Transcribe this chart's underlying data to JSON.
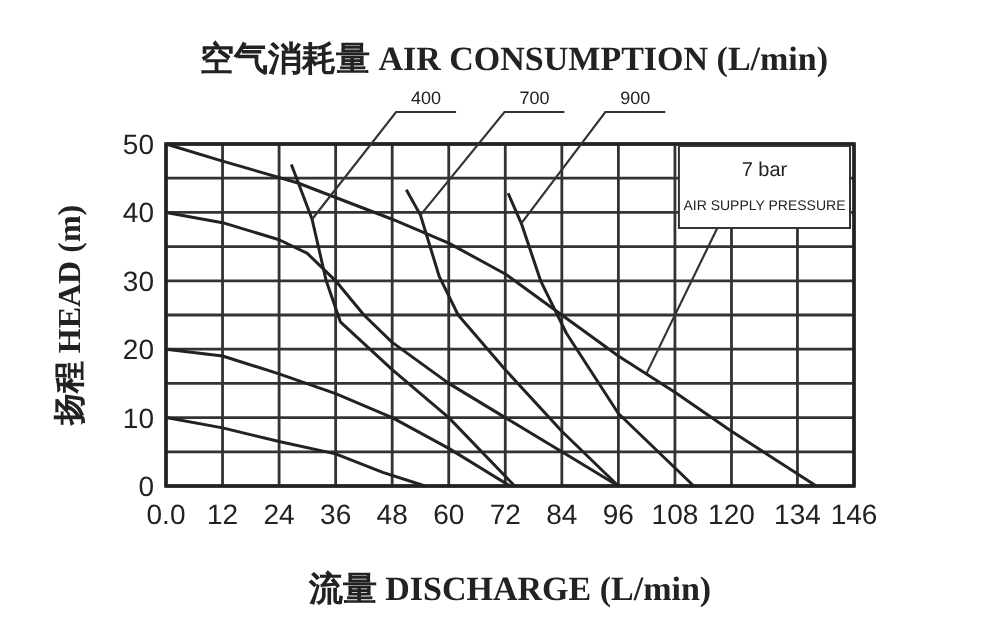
{
  "chart_data": {
    "type": "line",
    "title": "空气消耗量 AIR CONSUMPTION (L/min)",
    "xlabel": "流量 DISCHARGE (L/min)",
    "ylabel": "扬程 HEAD (m)",
    "xlim": [
      0,
      146
    ],
    "xticks": [
      {
        "value": 0,
        "label": "0.0"
      },
      12,
      24,
      36,
      48,
      60,
      72,
      84,
      96,
      108,
      120,
      134,
      146
    ],
    "ylim": [
      0,
      50
    ],
    "yticks": [
      0,
      {
        "value": 5,
        "label": null
      },
      10,
      {
        "value": 15,
        "label": null
      },
      20,
      {
        "value": 25,
        "label": null
      },
      30,
      {
        "value": 35,
        "label": null
      },
      40,
      {
        "value": 45,
        "label": null
      },
      50
    ],
    "grid": true,
    "marker": "none",
    "line_style": "solid",
    "series": [
      {
        "color": "#222222",
        "x": [
          0,
          12,
          28,
          48,
          60,
          72,
          84,
          96,
          108,
          120,
          138
        ],
        "values": [
          50,
          47.5,
          44.3,
          39,
          35.5,
          31,
          25,
          19,
          13.7,
          8,
          0
        ]
      },
      {
        "color": "#222222",
        "x": [
          0,
          12,
          24,
          30,
          36,
          42,
          48,
          60,
          72,
          84,
          96
        ],
        "values": [
          40,
          38.5,
          36,
          34,
          30,
          25,
          21,
          15,
          10,
          5,
          0
        ]
      },
      {
        "color": "#222222",
        "x": [
          0,
          12,
          24,
          36,
          48,
          60,
          73
        ],
        "values": [
          20,
          19,
          16.4,
          13.5,
          10,
          5.5,
          0
        ]
      },
      {
        "color": "#222222",
        "x": [
          0,
          12,
          24,
          36,
          46,
          55
        ],
        "values": [
          10,
          8.5,
          6.5,
          4.7,
          2,
          0
        ]
      },
      {
        "name": "400",
        "color": "#222222",
        "x": [
          26.6,
          31,
          34,
          37,
          48,
          60,
          74
        ],
        "values": [
          47,
          39,
          30,
          24,
          17,
          10,
          0
        ]
      },
      {
        "name": "700",
        "color": "#222222",
        "x": [
          51,
          54,
          58,
          62,
          72,
          84,
          96
        ],
        "values": [
          43.3,
          39.6,
          30.6,
          25,
          17,
          8,
          0
        ]
      },
      {
        "name": "900",
        "color": "#222222",
        "x": [
          72.6,
          75.4,
          79.5,
          85,
          96,
          112
        ],
        "values": [
          42.8,
          38.4,
          30,
          22.3,
          10.6,
          0
        ]
      }
    ],
    "annotations": [
      "7 bar",
      {
        "text": "AIR SUPPLY PRESSURE",
        "x": 102,
        "y": 16.5
      }
    ]
  }
}
